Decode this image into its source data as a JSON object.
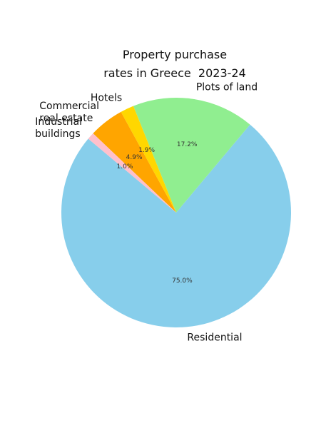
{
  "chart_data": {
    "type": "pie",
    "title": "Property purchase\nrates in Greece  2023-24",
    "categories": [
      "Residential",
      "Plots of land",
      "Hotels",
      "Commercial\nreal estate",
      "Industrial\nbuildings"
    ],
    "values": [
      75.0,
      17.2,
      1.9,
      4.9,
      1.0
    ],
    "value_labels": [
      "75.0%",
      "17.2%",
      "1.9%",
      "4.9%",
      "1.0%"
    ],
    "colors": [
      "#87ceeb",
      "#90ee90",
      "#ffd700",
      "#ffa500",
      "#ffc0cb"
    ]
  }
}
